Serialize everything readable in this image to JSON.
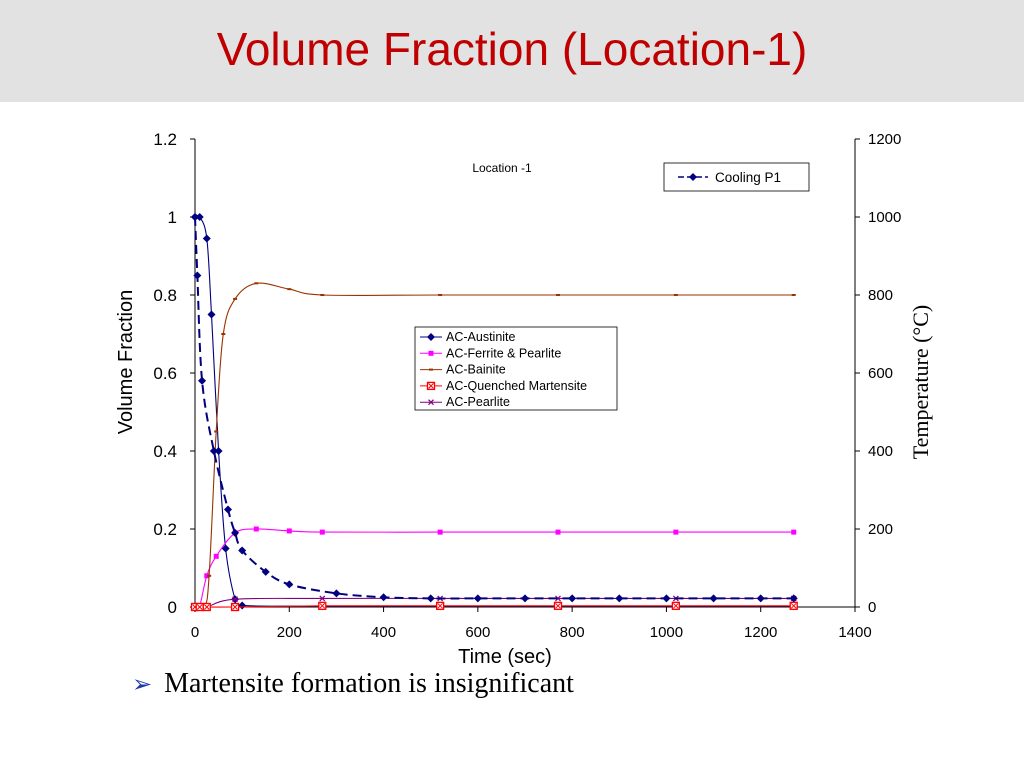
{
  "slide": {
    "title": "Volume Fraction (Location-1)",
    "bullet_marker": "➢",
    "bullet": "Martensite formation is insignificant"
  },
  "chart_data": {
    "type": "line",
    "title": "Location -1",
    "xlabel": "Time (sec)",
    "ylabel": "Volume Fraction",
    "y2label": "Temperature (°C)",
    "xlim": [
      0,
      1400
    ],
    "ylim": [
      0,
      1.2
    ],
    "y2lim": [
      0,
      1200
    ],
    "xticks": [
      "0",
      "200",
      "400",
      "600",
      "800",
      "1000",
      "1200",
      "1400"
    ],
    "yticks": [
      "0",
      "0.2",
      "0.4",
      "0.6",
      "0.8",
      "1",
      "1.2"
    ],
    "y2ticks": [
      "0",
      "200",
      "400",
      "600",
      "800",
      "1000",
      "1200"
    ],
    "grid": false,
    "legend_main_position": "center-right",
    "legend_secondary_position": "top-right",
    "series": [
      {
        "name": "AC-Austinite",
        "axis": "left",
        "color": "#000080",
        "marker": "diamond",
        "dash": "solid",
        "points": [
          [
            0,
            1.0
          ],
          [
            10,
            1.0
          ],
          [
            25,
            0.945
          ],
          [
            35,
            0.75
          ],
          [
            50,
            0.4
          ],
          [
            65,
            0.15
          ],
          [
            85,
            0.02
          ],
          [
            100,
            0.004
          ],
          [
            270,
            0.002
          ],
          [
            520,
            0.002
          ],
          [
            770,
            0.002
          ],
          [
            1020,
            0.002
          ],
          [
            1270,
            0.002
          ]
        ]
      },
      {
        "name": "AC-Ferrite & Pearlite",
        "axis": "left",
        "color": "#ff00ff",
        "marker": "square",
        "dash": "solid",
        "points": [
          [
            0,
            0.0
          ],
          [
            10,
            0.003
          ],
          [
            25,
            0.08
          ],
          [
            45,
            0.13
          ],
          [
            85,
            0.19
          ],
          [
            130,
            0.2
          ],
          [
            200,
            0.195
          ],
          [
            270,
            0.192
          ],
          [
            520,
            0.192
          ],
          [
            770,
            0.192
          ],
          [
            1020,
            0.192
          ],
          [
            1270,
            0.192
          ]
        ]
      },
      {
        "name": "AC-Bainite",
        "axis": "left",
        "color": "#993300",
        "marker": "dash",
        "dash": "solid",
        "points": [
          [
            0,
            0.0
          ],
          [
            20,
            0.0
          ],
          [
            30,
            0.08
          ],
          [
            45,
            0.45
          ],
          [
            60,
            0.7
          ],
          [
            85,
            0.79
          ],
          [
            130,
            0.83
          ],
          [
            200,
            0.815
          ],
          [
            270,
            0.8
          ],
          [
            520,
            0.8
          ],
          [
            770,
            0.8
          ],
          [
            1020,
            0.8
          ],
          [
            1270,
            0.8
          ]
        ]
      },
      {
        "name": "AC-Quenched Martensite",
        "axis": "left",
        "color": "#ff0000",
        "marker": "xsquare",
        "dash": "solid",
        "points": [
          [
            0,
            0.0
          ],
          [
            10,
            0.0
          ],
          [
            25,
            0.0
          ],
          [
            85,
            0.0
          ],
          [
            270,
            0.003
          ],
          [
            520,
            0.003
          ],
          [
            770,
            0.003
          ],
          [
            1020,
            0.003
          ],
          [
            1270,
            0.003
          ]
        ]
      },
      {
        "name": "AC-Pearlite",
        "axis": "left",
        "color": "#800080",
        "marker": "x",
        "dash": "solid",
        "points": [
          [
            0,
            0.0
          ],
          [
            10,
            0.0
          ],
          [
            25,
            0.0
          ],
          [
            85,
            0.02
          ],
          [
            270,
            0.022
          ],
          [
            520,
            0.022
          ],
          [
            770,
            0.022
          ],
          [
            1020,
            0.022
          ],
          [
            1270,
            0.022
          ]
        ]
      },
      {
        "name": "Cooling P1",
        "axis": "right",
        "color": "#000080",
        "marker": "diamond",
        "dash": "dashed",
        "points": [
          [
            0,
            1000
          ],
          [
            5,
            850
          ],
          [
            15,
            580
          ],
          [
            40,
            400
          ],
          [
            70,
            250
          ],
          [
            85,
            190
          ],
          [
            100,
            145
          ],
          [
            150,
            90
          ],
          [
            200,
            58
          ],
          [
            300,
            35
          ],
          [
            400,
            25
          ],
          [
            500,
            22
          ],
          [
            600,
            22
          ],
          [
            700,
            22
          ],
          [
            800,
            22
          ],
          [
            900,
            22
          ],
          [
            1000,
            22
          ],
          [
            1100,
            22
          ],
          [
            1200,
            22
          ],
          [
            1270,
            22
          ]
        ]
      }
    ]
  }
}
